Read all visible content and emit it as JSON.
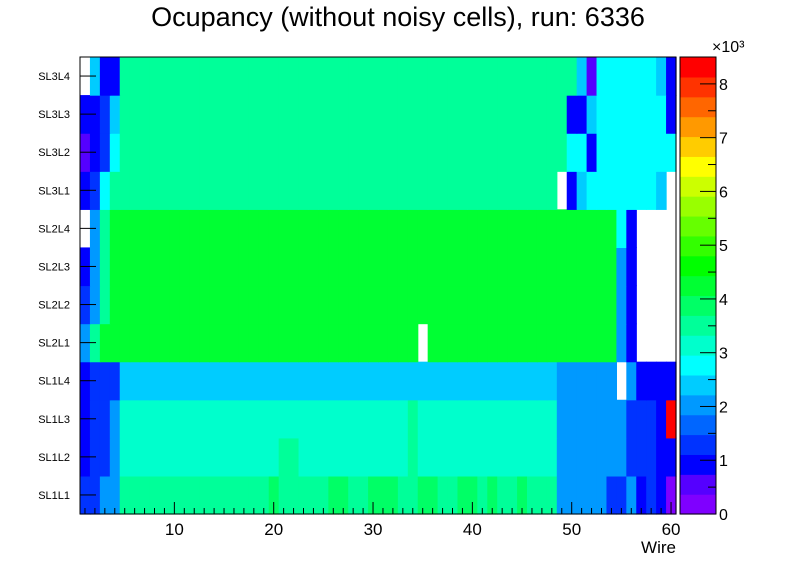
{
  "chart_data": {
    "type": "heatmap",
    "title": "Ocupancy (without noisy cells), run: 6336",
    "xlabel": "Wire",
    "ylabel": "",
    "x_range": [
      0.5,
      60.5
    ],
    "x_ticks": [
      "10",
      "20",
      "30",
      "40",
      "50",
      "60"
    ],
    "rows": [
      "SL1L1",
      "SL1L2",
      "SL1L3",
      "SL1L4",
      "SL2L1",
      "SL2L2",
      "SL2L3",
      "SL2L4",
      "SL3L1",
      "SL3L2",
      "SL3L3",
      "SL3L4"
    ],
    "z_range": [
      0,
      8500
    ],
    "z_scale_label": "×10³",
    "z_ticks": [
      "0",
      "1",
      "2",
      "3",
      "4",
      "5",
      "6",
      "7",
      "8"
    ],
    "palette": [
      "#7f00ff",
      "#5500ff",
      "#0000ff",
      "#0033ff",
      "#0066ff",
      "#0099ff",
      "#00ccff",
      "#00ffff",
      "#00ffcc",
      "#00ff99",
      "#00ff66",
      "#00ff33",
      "#00ff00",
      "#33ff00",
      "#66ff00",
      "#99ff00",
      "#ccff00",
      "#ffff00",
      "#ffcc00",
      "#ff9900",
      "#ff6600",
      "#ff3300",
      "#ff0000"
    ],
    "values": [
      [
        1400,
        1400,
        2000,
        2000,
        3400,
        3400,
        3400,
        3400,
        3400,
        3400,
        3400,
        3400,
        3400,
        3400,
        3400,
        3400,
        3400,
        3400,
        3400,
        3900,
        3400,
        3400,
        3400,
        3400,
        3400,
        3900,
        3900,
        3400,
        3400,
        3900,
        3900,
        3900,
        3400,
        3400,
        3900,
        3900,
        3400,
        3400,
        3900,
        3900,
        3400,
        3900,
        3400,
        3400,
        3900,
        3400,
        3400,
        3400,
        2000,
        2000,
        2000,
        2000,
        2000,
        1400,
        1400,
        2000,
        1000,
        1400,
        1000,
        0
      ],
      [
        1000,
        1400,
        1400,
        2000,
        3000,
        3000,
        3000,
        3000,
        3000,
        3000,
        3000,
        3000,
        3000,
        3000,
        3000,
        3000,
        3000,
        3000,
        3000,
        3000,
        3400,
        3400,
        3000,
        3000,
        3000,
        3000,
        3000,
        3000,
        3000,
        3000,
        3000,
        3000,
        3000,
        3400,
        3000,
        3000,
        3000,
        3000,
        3000,
        3000,
        3000,
        3000,
        3000,
        3000,
        3000,
        3000,
        3000,
        3000,
        2000,
        2000,
        2000,
        2000,
        2000,
        2000,
        2000,
        1400,
        1400,
        1400,
        1000,
        1000
      ],
      [
        1000,
        1400,
        1400,
        2000,
        3000,
        3000,
        3000,
        3000,
        3000,
        3000,
        3000,
        3000,
        3000,
        3000,
        3000,
        3000,
        3000,
        3000,
        3000,
        3000,
        3000,
        3000,
        3000,
        3000,
        3000,
        3000,
        3000,
        3000,
        3000,
        3000,
        3000,
        3000,
        3000,
        3400,
        3000,
        3000,
        3000,
        3000,
        3000,
        3000,
        3000,
        3000,
        3000,
        3000,
        3000,
        3000,
        3000,
        3000,
        2000,
        2000,
        2000,
        2000,
        2000,
        2000,
        2000,
        1400,
        1400,
        1400,
        1000,
        8200
      ],
      [
        1000,
        1400,
        1400,
        1400,
        2400,
        2400,
        2400,
        2400,
        2400,
        2400,
        2400,
        2400,
        2400,
        2400,
        2400,
        2400,
        2400,
        2400,
        2400,
        2400,
        2400,
        2400,
        2400,
        2400,
        2400,
        2400,
        2400,
        2400,
        2400,
        2400,
        2400,
        2400,
        2400,
        2400,
        2400,
        2400,
        2400,
        2400,
        2400,
        2400,
        2400,
        2400,
        2400,
        2400,
        2400,
        2400,
        2400,
        2400,
        2000,
        2000,
        2000,
        2000,
        2000,
        2000,
        -1,
        2000,
        1000,
        1000,
        1000,
        1000
      ],
      [
        2000,
        3400,
        4100,
        4100,
        4100,
        4100,
        4100,
        4100,
        4100,
        4100,
        4100,
        4100,
        4100,
        4100,
        4100,
        4100,
        4100,
        4100,
        4100,
        4100,
        4100,
        4100,
        4100,
        4100,
        4100,
        4100,
        4100,
        4100,
        4100,
        4100,
        4100,
        4100,
        4100,
        4100,
        -1,
        4100,
        4100,
        4100,
        4100,
        4100,
        4100,
        4100,
        4100,
        4100,
        4100,
        4100,
        4100,
        4100,
        4100,
        4100,
        4100,
        4100,
        4100,
        4100,
        2000,
        1000,
        -1,
        -1,
        -1,
        -1
      ],
      [
        1400,
        2000,
        3400,
        4100,
        4100,
        4100,
        4100,
        4100,
        4100,
        4100,
        4100,
        4100,
        4100,
        4100,
        4100,
        4100,
        4100,
        4100,
        4100,
        4100,
        4100,
        4100,
        4100,
        4100,
        4100,
        4100,
        4100,
        4100,
        4100,
        4100,
        4100,
        4100,
        4100,
        4100,
        4100,
        4100,
        4100,
        4100,
        4100,
        4100,
        4100,
        4100,
        4100,
        4100,
        4100,
        4100,
        4100,
        4100,
        4100,
        4100,
        4100,
        4100,
        4100,
        4100,
        2000,
        1000,
        -1,
        -1,
        -1,
        -1
      ],
      [
        1000,
        2000,
        3400,
        4100,
        4100,
        4100,
        4100,
        4100,
        4100,
        4100,
        4100,
        4100,
        4100,
        4100,
        4100,
        4100,
        4100,
        4100,
        4100,
        4100,
        4100,
        4100,
        4100,
        4100,
        4100,
        4100,
        4100,
        4100,
        4100,
        4100,
        4100,
        4100,
        4100,
        4100,
        4100,
        4100,
        4100,
        4100,
        4100,
        4100,
        4100,
        4100,
        4100,
        4100,
        4100,
        4100,
        4100,
        4100,
        4100,
        4100,
        4100,
        4100,
        4100,
        4100,
        2000,
        1000,
        -1,
        -1,
        -1,
        -1
      ],
      [
        -1,
        2000,
        3400,
        4100,
        4100,
        4100,
        4100,
        4100,
        4100,
        4100,
        4100,
        4100,
        4100,
        4100,
        4100,
        4100,
        4100,
        4100,
        4100,
        4100,
        4100,
        4100,
        4100,
        4100,
        4100,
        4100,
        4100,
        4100,
        4100,
        4100,
        4100,
        4100,
        4100,
        4100,
        4100,
        4100,
        4100,
        4100,
        4100,
        4100,
        4100,
        4100,
        4100,
        4100,
        4100,
        4100,
        4100,
        4100,
        4100,
        4100,
        4100,
        4100,
        4100,
        4100,
        2900,
        1000,
        -1,
        -1,
        -1,
        -1
      ],
      [
        1000,
        1400,
        2900,
        3400,
        3400,
        3400,
        3400,
        3400,
        3400,
        3400,
        3400,
        3400,
        3400,
        3400,
        3400,
        3400,
        3400,
        3400,
        3400,
        3400,
        3400,
        3400,
        3400,
        3400,
        3400,
        3400,
        3400,
        3400,
        3400,
        3400,
        3400,
        3400,
        3400,
        3400,
        3400,
        3400,
        3400,
        3400,
        3400,
        3400,
        3400,
        3400,
        3400,
        3400,
        3400,
        3400,
        3400,
        3400,
        -1,
        1000,
        2400,
        2900,
        2900,
        2900,
        2900,
        2900,
        2900,
        2900,
        2400,
        -1
      ],
      [
        700,
        1000,
        1400,
        2900,
        3400,
        3400,
        3400,
        3400,
        3400,
        3400,
        3400,
        3400,
        3400,
        3400,
        3400,
        3400,
        3400,
        3400,
        3400,
        3400,
        3400,
        3400,
        3400,
        3400,
        3400,
        3400,
        3400,
        3400,
        3400,
        3400,
        3400,
        3400,
        3400,
        3400,
        3400,
        3400,
        3400,
        3400,
        3400,
        3400,
        3400,
        3400,
        3400,
        3400,
        3400,
        3400,
        3400,
        3400,
        3400,
        2900,
        2900,
        1000,
        2900,
        2900,
        2900,
        2900,
        2900,
        2900,
        2900,
        2900
      ],
      [
        1000,
        1000,
        1400,
        2400,
        3400,
        3400,
        3400,
        3400,
        3400,
        3400,
        3400,
        3400,
        3400,
        3400,
        3400,
        3400,
        3400,
        3400,
        3400,
        3400,
        3400,
        3400,
        3400,
        3400,
        3400,
        3400,
        3400,
        3400,
        3400,
        3400,
        3400,
        3400,
        3400,
        3400,
        3400,
        3400,
        3400,
        3400,
        3400,
        3400,
        3400,
        3400,
        3400,
        3400,
        3400,
        3400,
        3400,
        3400,
        3400,
        1000,
        1000,
        2400,
        2900,
        2900,
        2900,
        2900,
        2900,
        2900,
        2900,
        1000
      ],
      [
        -1,
        2400,
        1000,
        1000,
        3400,
        3400,
        3400,
        3400,
        3400,
        3400,
        3400,
        3400,
        3400,
        3400,
        3400,
        3400,
        3400,
        3400,
        3400,
        3400,
        3400,
        3400,
        3400,
        3400,
        3400,
        3400,
        3400,
        3400,
        3400,
        3400,
        3400,
        3400,
        3400,
        3400,
        3400,
        3400,
        3400,
        3400,
        3400,
        3400,
        3400,
        3400,
        3400,
        3400,
        3400,
        3400,
        3400,
        3400,
        3400,
        3400,
        2400,
        700,
        2900,
        2900,
        2900,
        2900,
        2900,
        2900,
        2400,
        1000
      ]
    ]
  }
}
